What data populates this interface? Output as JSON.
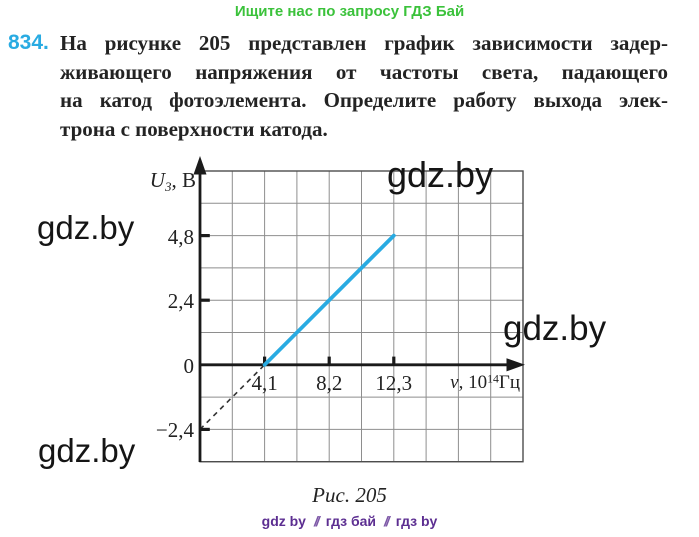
{
  "header": {
    "promo": "Ищите нас по запросу ГДЗ Бай"
  },
  "problem": {
    "number": "834.",
    "lines": [
      "На рисунке 205 представлен график зависимости задер-",
      "живающего напряжения от частоты света, падающего",
      "на катод фотоэлемента. Определите работу выхода элек-",
      "трона с поверхности катода."
    ]
  },
  "figure": {
    "caption": "Рис. 205",
    "watermark": "gdz.by",
    "y_axis": {
      "label_var": "U",
      "label_sub": "3",
      "label_unit": ", В",
      "ticks": [
        "4,8",
        "2,4",
        "0",
        "−2,4"
      ]
    },
    "x_axis": {
      "label_var": "ν",
      "label_pre": ", 10",
      "label_sup": "14",
      "label_unit": "Гц",
      "ticks": [
        "4,1",
        "8,2",
        "12,3"
      ]
    }
  },
  "chart_data": {
    "type": "line",
    "title": "",
    "xlabel": "ν, 10^14 Гц",
    "ylabel": "U3, В",
    "xlim": [
      0,
      20.5
    ],
    "ylim": [
      -3.6,
      7.2
    ],
    "x_ticks": [
      4.1,
      8.2,
      12.3
    ],
    "y_ticks": [
      -2.4,
      0,
      2.4,
      4.8
    ],
    "grid": true,
    "grid_cell": {
      "x": 2.05,
      "y": 1.2
    },
    "series": [
      {
        "name": "stopping-voltage-vs-frequency",
        "style": "solid",
        "color": "#29abe2",
        "x": [
          4.1,
          12.3
        ],
        "y": [
          0,
          4.8
        ]
      },
      {
        "name": "extrapolation-below-threshold",
        "style": "dashed",
        "color": "#333333",
        "x": [
          0,
          4.1
        ],
        "y": [
          -2.4,
          0
        ]
      }
    ]
  },
  "footer": {
    "parts": [
      "gdz by",
      "гдз бай",
      "гдз by"
    ],
    "separator": "//"
  },
  "colors": {
    "accent_blue": "#29abe2",
    "promo_green": "#3bc23b",
    "footer_purple": "#5c2e91",
    "grid_gray": "#8e8e8e",
    "axis_black": "#1a1a1a"
  }
}
